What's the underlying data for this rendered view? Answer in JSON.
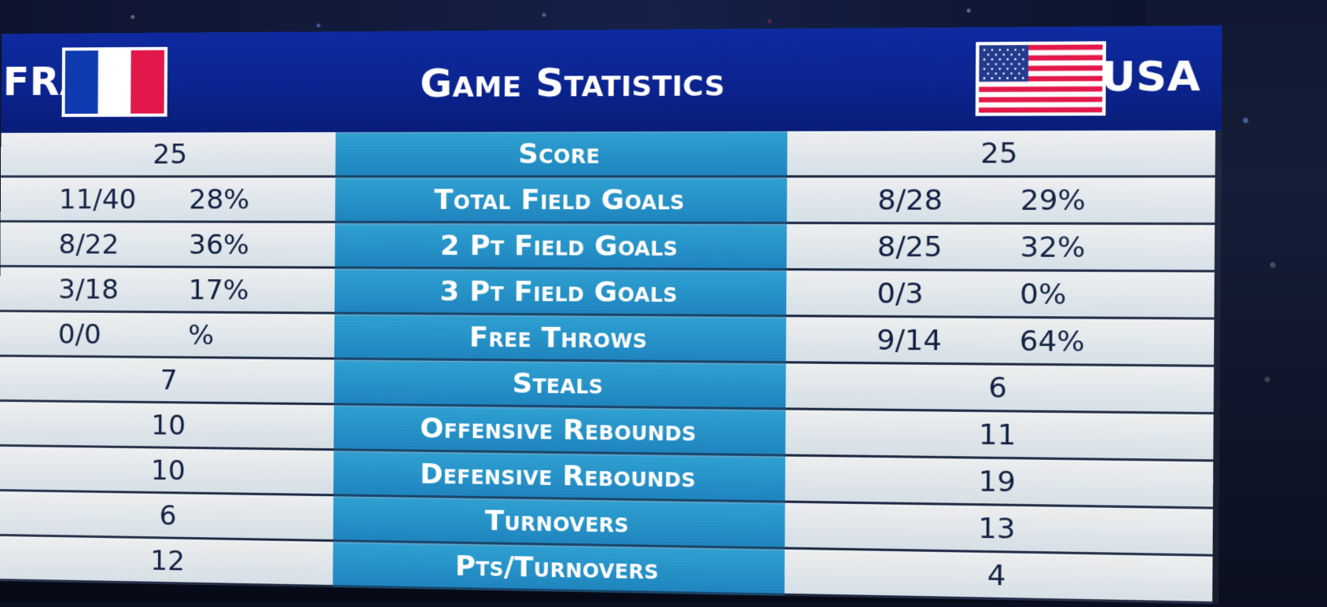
{
  "header": {
    "title": "Game Statistics",
    "left_team": "FRA",
    "right_team": "USA"
  },
  "colors": {
    "header_blue": "#0b2490",
    "center_blue": "#1e84be",
    "panel_light": "#e7eef2",
    "france_blue": "#0e3bb0",
    "france_red": "#e3184a",
    "usa_red": "#e3184a",
    "usa_blue": "#233b8e"
  },
  "stats": [
    {
      "label": "Score",
      "left": {
        "single": "25"
      },
      "right": {
        "single": "25"
      }
    },
    {
      "label": "Total Field Goals",
      "left": {
        "a": "11/40",
        "b": "28%"
      },
      "right": {
        "a": "8/28",
        "b": "29%"
      }
    },
    {
      "label": "2 Pt Field Goals",
      "left": {
        "a": "8/22",
        "b": "36%"
      },
      "right": {
        "a": "8/25",
        "b": "32%"
      }
    },
    {
      "label": "3 Pt Field Goals",
      "left": {
        "a": "3/18",
        "b": "17%"
      },
      "right": {
        "a": "0/3",
        "b": "0%"
      }
    },
    {
      "label": "Free Throws",
      "left": {
        "a": "0/0",
        "b": "%"
      },
      "right": {
        "a": "9/14",
        "b": "64%"
      }
    },
    {
      "label": "Steals",
      "left": {
        "single": "7"
      },
      "right": {
        "single": "6"
      }
    },
    {
      "label": "Offensive Rebounds",
      "left": {
        "single": "10"
      },
      "right": {
        "single": "11"
      }
    },
    {
      "label": "Defensive Rebounds",
      "left": {
        "single": "10"
      },
      "right": {
        "single": "19"
      }
    },
    {
      "label": "Turnovers",
      "left": {
        "single": "6"
      },
      "right": {
        "single": "13"
      }
    },
    {
      "label": "Pts/Turnovers",
      "left": {
        "single": "12"
      },
      "right": {
        "single": "4"
      }
    }
  ]
}
